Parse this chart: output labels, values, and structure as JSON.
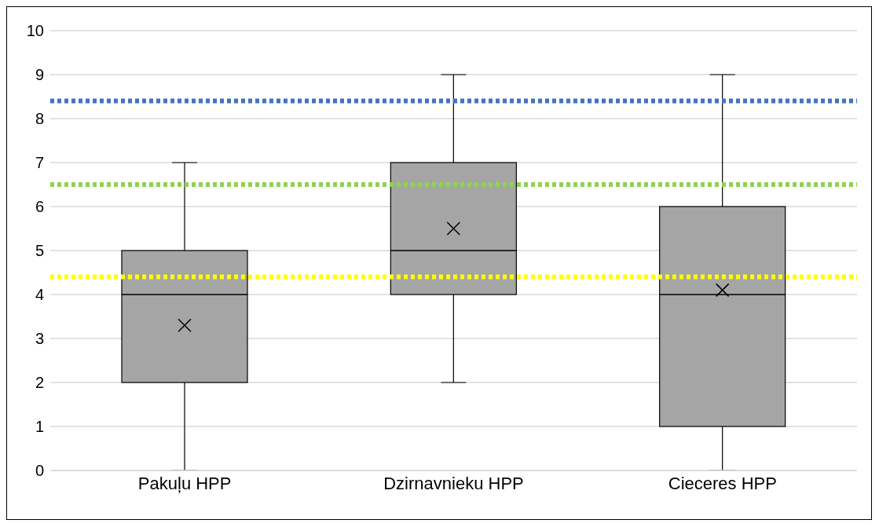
{
  "chart_data": {
    "type": "box",
    "categories": [
      "Pakuļu HPP",
      "Dzirnavnieku HPP",
      "Cieceres HPP"
    ],
    "boxes": [
      {
        "low": 0,
        "q1": 2,
        "median": 4,
        "q3": 5,
        "high": 7,
        "mean": 3.3
      },
      {
        "low": 2,
        "q1": 4,
        "median": 5,
        "q3": 7,
        "high": 9,
        "mean": 5.5
      },
      {
        "low": 0,
        "q1": 1,
        "median": 4,
        "q3": 6,
        "high": 9,
        "mean": 4.1
      }
    ],
    "color": "#a5a5a5",
    "marker": "cross",
    "ylim": [
      0,
      10
    ],
    "yticks": [
      0,
      1,
      2,
      3,
      4,
      5,
      6,
      7,
      8,
      9,
      10
    ],
    "grid": "y",
    "ref_lines": [
      {
        "axis": "y",
        "value": 8.4,
        "color": "#4472c4",
        "line_style": "dotted"
      },
      {
        "axis": "y",
        "value": 6.5,
        "color": "#92d050",
        "line_style": "dotted"
      },
      {
        "axis": "y",
        "value": 4.4,
        "color": "#ffff00",
        "line_style": "dotted"
      }
    ]
  }
}
